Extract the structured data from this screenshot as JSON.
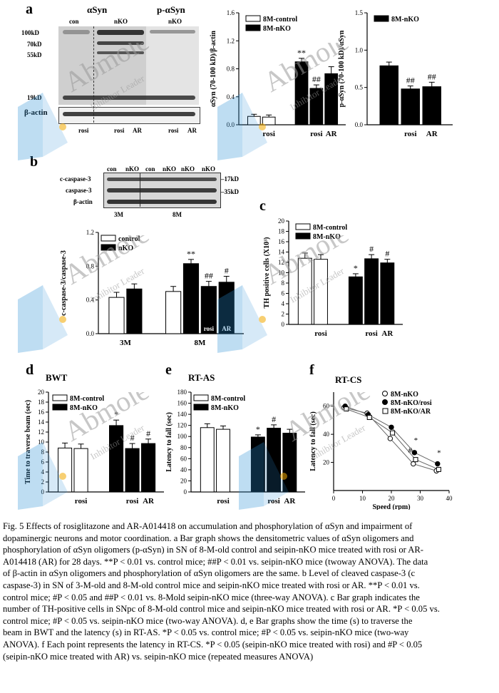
{
  "panel_a": {
    "label": "a",
    "blot": {
      "header_asyn": "αSyn",
      "header_pasyn": "p-αSyn",
      "lane_top": [
        "con",
        "nKO",
        "nKO"
      ],
      "markers": [
        "100kD",
        "70kD",
        "55kD",
        "19kD",
        "β-actin"
      ],
      "lane_bottom": [
        "rosi",
        "rosi",
        "AR",
        "rosi",
        "AR"
      ]
    }
  },
  "panel_b": {
    "label": "b",
    "blot": {
      "lane_top": [
        "con",
        "nKO",
        "con",
        "nKO",
        "nKO",
        "nKO"
      ],
      "rows": [
        "c-caspase-3",
        "caspase-3",
        "β-actin"
      ],
      "sizes": [
        "17kD",
        "35kD"
      ],
      "groups": [
        "3M",
        "8M"
      ]
    }
  },
  "panel_c": {
    "label": "c"
  },
  "panel_d": {
    "label": "d",
    "title": "BWT"
  },
  "panel_e": {
    "label": "e",
    "title": "RT-AS"
  },
  "panel_f": {
    "label": "f",
    "title": "RT-CS"
  },
  "chart_data": [
    {
      "id": "a1",
      "type": "bar",
      "ylabel": "αSyn (70-100 kD)/β-actin",
      "ylim": [
        0,
        1.6
      ],
      "yticks": [
        "0.0",
        "0.4",
        "0.8",
        "1.2",
        "1.6"
      ],
      "legend": [
        "8M-control",
        "8M-nKO"
      ],
      "categories": [
        "",
        "rosi",
        "",
        "rosi",
        "AR"
      ],
      "values": [
        0.12,
        0.11,
        0.9,
        0.52,
        0.73
      ],
      "errors": [
        0.03,
        0.03,
        0.05,
        0.05,
        0.1
      ],
      "fills": [
        "w",
        "w",
        "b",
        "b",
        "b"
      ],
      "annotations": [
        "",
        "",
        "**",
        "##",
        ""
      ],
      "xlabels": [
        {
          "text": "rosi",
          "at": 1
        },
        {
          "text": "rosi",
          "at": 3
        },
        {
          "text": "AR",
          "at": 4
        }
      ]
    },
    {
      "id": "a2",
      "type": "bar",
      "ylabel": "p-αSyn (70-100 kD)/αSyn",
      "ylim": [
        0,
        1.5
      ],
      "yticks": [
        "0.0",
        "0.5",
        "1.0",
        "1.5"
      ],
      "legend": [
        "8M-nKO"
      ],
      "categories": [
        "",
        "rosi",
        "AR"
      ],
      "values": [
        0.79,
        0.48,
        0.51
      ],
      "errors": [
        0.05,
        0.04,
        0.06
      ],
      "fills": [
        "b",
        "b",
        "b"
      ],
      "annotations": [
        "",
        "##",
        "##"
      ],
      "xlabels": [
        {
          "text": "rosi",
          "at": 1
        },
        {
          "text": "AR",
          "at": 2
        }
      ]
    },
    {
      "id": "b",
      "type": "bar",
      "ylabel": "c-caspase-3/caspase-3",
      "ylim": [
        0,
        1.2
      ],
      "yticks": [
        "0.0",
        "0.4",
        "0.8",
        "1.2"
      ],
      "legend": [
        "control",
        "nKO"
      ],
      "categories": [
        "3M",
        "3M",
        "8M",
        "8M",
        "8M",
        "8M"
      ],
      "values": [
        0.43,
        0.53,
        0.5,
        0.83,
        0.56,
        0.61
      ],
      "errors": [
        0.06,
        0.06,
        0.06,
        0.05,
        0.06,
        0.07
      ],
      "fills": [
        "w",
        "b",
        "w",
        "b",
        "b",
        "b"
      ],
      "annotations": [
        "",
        "",
        "",
        "**",
        "##",
        "#"
      ],
      "inbar": [
        "",
        "",
        "",
        "",
        "rosi",
        "AR"
      ],
      "xlabels": [
        {
          "text": "3M",
          "at": 0.5
        },
        {
          "text": "8M",
          "at": 3.5
        }
      ]
    },
    {
      "id": "c",
      "type": "bar",
      "ylabel": "TH positive cells (X10³)",
      "ylim": [
        0,
        20
      ],
      "yticks": [
        "0",
        "2",
        "4",
        "6",
        "8",
        "10",
        "12",
        "14",
        "16",
        "18",
        "20"
      ],
      "legend": [
        "8M-control",
        "8M-nKO"
      ],
      "categories": [
        "",
        "rosi",
        "",
        "rosi",
        "AR"
      ],
      "values": [
        12.8,
        12.6,
        9.2,
        12.7,
        11.9
      ],
      "errors": [
        1.0,
        0.9,
        0.6,
        0.8,
        0.7
      ],
      "fills": [
        "w",
        "w",
        "b",
        "b",
        "b"
      ],
      "annotations": [
        "",
        "",
        "*",
        "#",
        "#"
      ],
      "xlabels": [
        {
          "text": "rosi",
          "at": 1
        },
        {
          "text": "rosi",
          "at": 3
        },
        {
          "text": "AR",
          "at": 4
        }
      ]
    },
    {
      "id": "d",
      "type": "bar",
      "ylabel": "Time to traverse beam (sec)",
      "ylim": [
        0,
        20
      ],
      "yticks": [
        "0",
        "2",
        "4",
        "6",
        "8",
        "10",
        "12",
        "14",
        "16",
        "18",
        "20"
      ],
      "legend": [
        "8M-control",
        "8M-nKO"
      ],
      "categories": [
        "",
        "rosi",
        "",
        "rosi",
        "AR"
      ],
      "values": [
        8.8,
        8.7,
        13.3,
        8.7,
        9.7
      ],
      "errors": [
        1.0,
        0.9,
        1.1,
        1.0,
        0.9
      ],
      "fills": [
        "w",
        "w",
        "b",
        "b",
        "b"
      ],
      "annotations": [
        "",
        "",
        "*",
        "#",
        "#"
      ],
      "xlabels": [
        {
          "text": "rosi",
          "at": 1
        },
        {
          "text": "rosi",
          "at": 3
        },
        {
          "text": "AR",
          "at": 4
        }
      ]
    },
    {
      "id": "e",
      "type": "bar",
      "ylabel": "Latency to fall (sec)",
      "ylim": [
        0,
        180
      ],
      "yticks": [
        "0",
        "20",
        "40",
        "60",
        "80",
        "100",
        "120",
        "140",
        "160",
        "180"
      ],
      "legend": [
        "8M-control",
        "8M-nKO"
      ],
      "categories": [
        "",
        "rosi",
        "",
        "rosi",
        "AR"
      ],
      "values": [
        116,
        113,
        99,
        115,
        106
      ],
      "errors": [
        7,
        6,
        4,
        6,
        7
      ],
      "fills": [
        "w",
        "w",
        "b",
        "b",
        "b"
      ],
      "annotations": [
        "",
        "",
        "*",
        "#",
        ""
      ],
      "xlabels": [
        {
          "text": "rosi",
          "at": 1
        },
        {
          "text": "rosi",
          "at": 3
        },
        {
          "text": "AR",
          "at": 4
        }
      ]
    },
    {
      "id": "f",
      "type": "line",
      "xlabel": "Speed (rpm)",
      "ylabel": "Latency to fall (sec)",
      "xlim": [
        0,
        40
      ],
      "ylim": [
        0,
        70
      ],
      "xticks": [
        "0",
        "10",
        "20",
        "30",
        "40"
      ],
      "yticks": [
        "20",
        "40",
        "60"
      ],
      "legend": [
        "8M-nKO",
        "8M-nKO/rosi",
        "8M-nKO/AR"
      ],
      "x": [
        4,
        12,
        20,
        28,
        36
      ],
      "series": [
        {
          "name": "8M-nKO",
          "marker": "open-circle",
          "values": [
            59,
            55,
            37,
            19,
            14
          ]
        },
        {
          "name": "8M-nKO/rosi",
          "marker": "filled-circle",
          "values": [
            60,
            54,
            45,
            27,
            19
          ]
        },
        {
          "name": "8M-nKO/AR",
          "marker": "open-square",
          "values": [
            58,
            52,
            41,
            22,
            15
          ]
        }
      ],
      "annotations": [
        {
          "text": "#",
          "x": 26.5,
          "y": 27
        },
        {
          "text": "*",
          "x": 28.5,
          "y": 34
        },
        {
          "text": "*",
          "x": 36.5,
          "y": 25
        }
      ]
    }
  ],
  "caption": {
    "lines": [
      "Fig. 5 Effects of rosiglitazone and AR-A014418 on accumulation and phosphorylation of αSyn and impairment of",
      "dopaminergic neurons and motor coordination. a Bar graph shows the densitometric values of αSyn oligomers and",
      "phosphorylation of αSyn oligomers (p-αSyn) in SN of 8-M-old control and seipin-nKO mice treated with rosi or AR-",
      "A014418 (AR) for 28 days. **P < 0.01 vs. control mice; ##P < 0.01 vs. seipin-nKO mice (twoway ANOVA). The data",
      "of β-actin in αSyn oligomers and phosphorylation of αSyn oligomers are the same. b Level of cleaved caspase-3 (c",
      "caspase-3) in SN of 3-M-old and 8-M-old control mice and seipin-nKO mice treated with rosi or AR. **P < 0.01 vs.",
      "control mice; #P < 0.05 and ##P < 0.01 vs. 8-Mold seipin-nKO mice (three-way ANOVA). c Bar graph indicates the",
      "number of TH-positive cells in SNpc of 8-M-old control mice and seipin-nKO mice treated with rosi or AR. *P < 0.05 vs.",
      "control mice; #P < 0.05 vs. seipin-nKO mice (two-way ANOVA). d, e Bar graphs show the time (s) to traverse the",
      "beam in BWT and the latency (s) in RT-AS. *P < 0.05 vs. control mice; #P < 0.05 vs. seipin-nKO mice (two-way",
      "ANOVA). f Each point represents the latency in RT-CS. *P < 0.05 (seipin-nKO mice treated with rosi) and #P < 0.05",
      "(seipin-nKO mice treated with AR) vs. seipin-nKO mice (repeated measures ANOVA)"
    ]
  },
  "watermark": {
    "brand": "Abmole",
    "sub": "Inhibitor Leader",
    "color": "#2a8fd6"
  }
}
